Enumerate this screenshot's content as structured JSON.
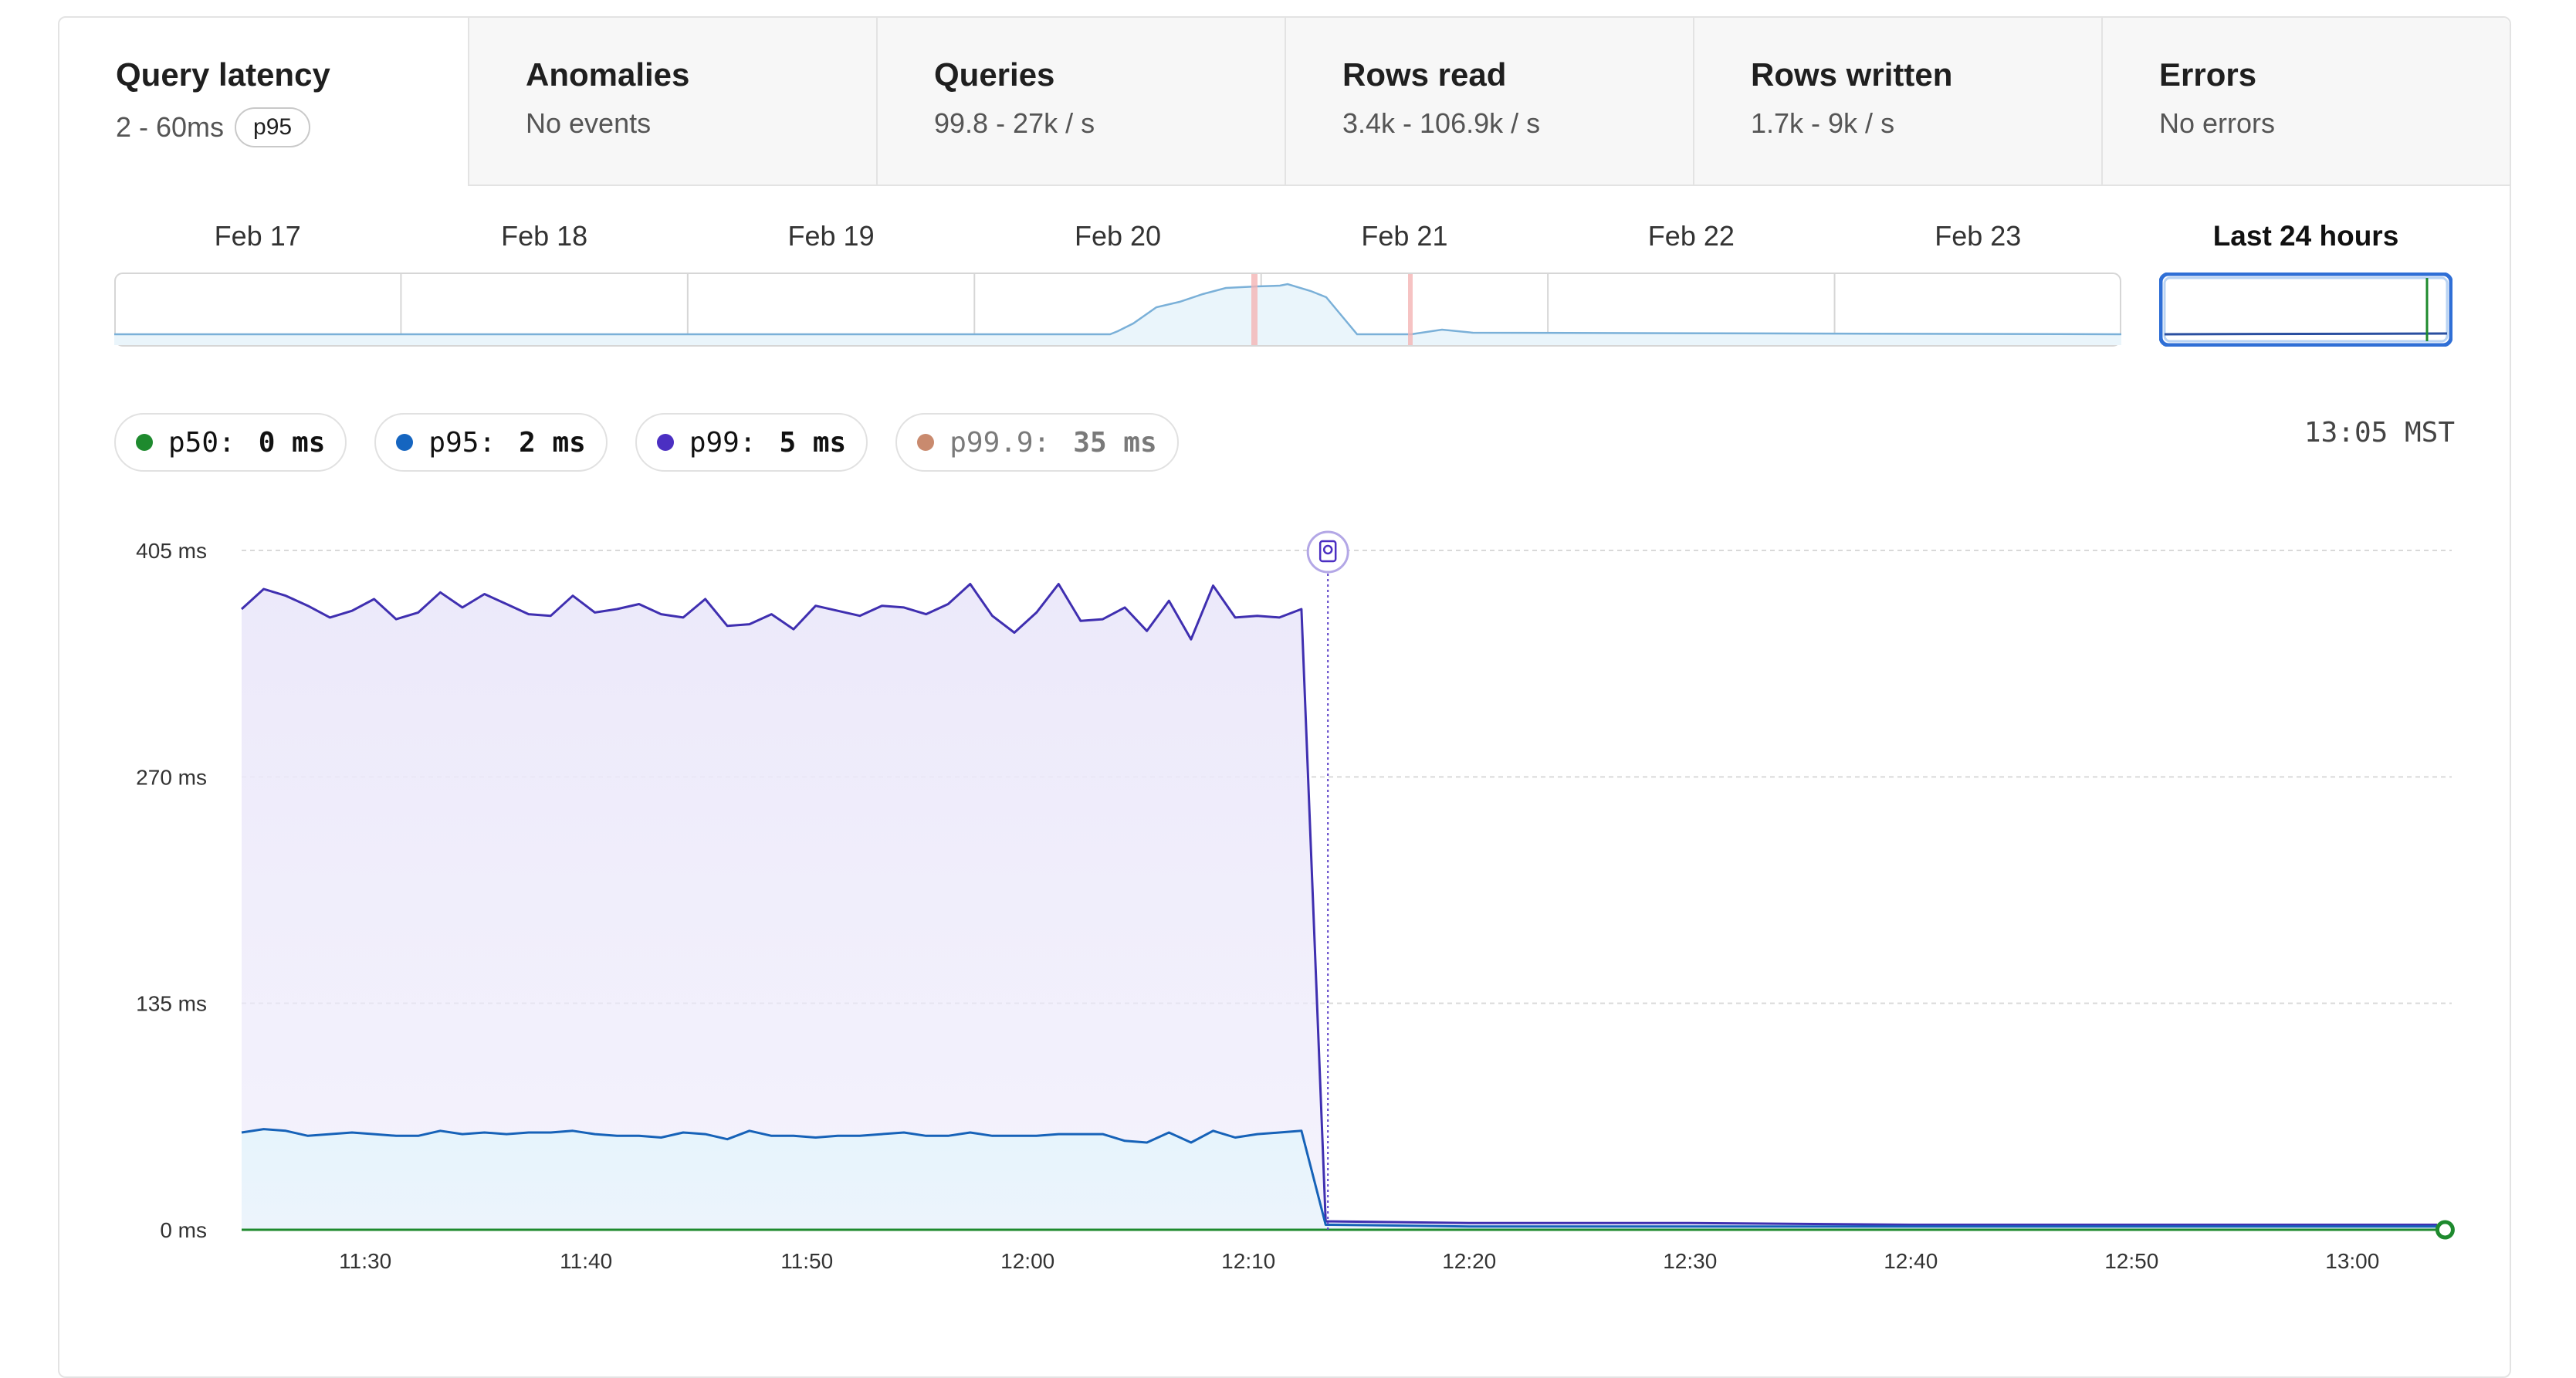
{
  "tabs": [
    {
      "title": "Query latency",
      "sub": "2 - 60ms",
      "badge": "p95",
      "active": true
    },
    {
      "title": "Anomalies",
      "sub": "No events",
      "active": false
    },
    {
      "title": "Queries",
      "sub": "99.8 - 27k / s",
      "active": false
    },
    {
      "title": "Rows read",
      "sub": "3.4k - 106.9k / s",
      "active": false
    },
    {
      "title": "Rows written",
      "sub": "1.7k - 9k / s",
      "active": false
    },
    {
      "title": "Errors",
      "sub": "No errors",
      "active": false
    }
  ],
  "overview": {
    "dates": [
      "Feb 17",
      "Feb 18",
      "Feb 19",
      "Feb 20",
      "Feb 21",
      "Feb 22",
      "Feb 23"
    ],
    "last24_label": "Last 24 hours",
    "accent": "#2f6fd6"
  },
  "legend": [
    {
      "name": "p50:",
      "value": "0 ms",
      "color": "#1e8a2e",
      "dim": false
    },
    {
      "name": "p95:",
      "value": "2 ms",
      "color": "#1565c0",
      "dim": false
    },
    {
      "name": "p99:",
      "value": "5 ms",
      "color": "#4b2fc2",
      "dim": false
    },
    {
      "name": "p99.9:",
      "value": "35 ms",
      "color": "#c98a6e",
      "dim": true
    }
  ],
  "clock": "13:05 MST",
  "chart_data": {
    "type": "area",
    "ylim": [
      0,
      405
    ],
    "y_ticks": [
      "405 ms",
      "270 ms",
      "135 ms",
      "0 ms"
    ],
    "y_tick_values": [
      405,
      270,
      135,
      0
    ],
    "x_ticks": [
      "11:30",
      "11:40",
      "11:50",
      "12:00",
      "12:10",
      "12:20",
      "12:30",
      "12:40",
      "12:50",
      "13:00"
    ],
    "x_tick_minutes": [
      690,
      700,
      710,
      720,
      730,
      740,
      750,
      760,
      770,
      780
    ],
    "x_range_minutes": [
      684.4,
      784.5
    ],
    "deploy_marker_minute": 733.6,
    "grid": true,
    "series": [
      {
        "name": "p99",
        "color": "#3f2fb0",
        "fill": "#ece9fa",
        "x": [
          684.4,
          685.4,
          686.4,
          687.4,
          688.4,
          689.4,
          690.4,
          691.4,
          692.4,
          693.4,
          694.4,
          695.4,
          696.4,
          697.4,
          698.4,
          699.4,
          700.4,
          701.4,
          702.4,
          703.4,
          704.4,
          705.4,
          706.4,
          707.4,
          708.4,
          709.4,
          710.4,
          711.4,
          712.4,
          713.4,
          714.4,
          715.4,
          716.4,
          717.4,
          718.4,
          719.4,
          720.4,
          721.4,
          722.4,
          723.4,
          724.4,
          725.4,
          726.4,
          727.4,
          728.4,
          729.4,
          730.4,
          731.4,
          732.4,
          733.5,
          733.8,
          740,
          750,
          760,
          770,
          780,
          784.2
        ],
        "values": [
          370,
          382,
          378,
          372,
          365,
          369,
          376,
          364,
          368,
          380,
          371,
          379,
          373,
          367,
          366,
          378,
          368,
          370,
          373,
          367,
          365,
          376,
          360,
          361,
          367,
          358,
          372,
          369,
          366,
          372,
          371,
          367,
          373,
          385,
          366,
          356,
          368,
          385,
          363,
          364,
          371,
          357,
          375,
          352,
          384,
          365,
          366,
          365,
          370,
          5,
          5,
          4,
          4,
          3,
          3,
          3,
          3
        ]
      },
      {
        "name": "p95",
        "color": "#1662b8",
        "fill": "#e6f4fc",
        "x": [
          684.4,
          685.4,
          686.4,
          687.4,
          688.4,
          689.4,
          690.4,
          691.4,
          692.4,
          693.4,
          694.4,
          695.4,
          696.4,
          697.4,
          698.4,
          699.4,
          700.4,
          701.4,
          702.4,
          703.4,
          704.4,
          705.4,
          706.4,
          707.4,
          708.4,
          709.4,
          710.4,
          711.4,
          712.4,
          713.4,
          714.4,
          715.4,
          716.4,
          717.4,
          718.4,
          719.4,
          720.4,
          721.4,
          722.4,
          723.4,
          724.4,
          725.4,
          726.4,
          727.4,
          728.4,
          729.4,
          730.4,
          731.4,
          732.4,
          733.5,
          733.8,
          740,
          750,
          760,
          770,
          780,
          784.2
        ],
        "values": [
          58,
          60,
          59,
          56,
          57,
          58,
          57,
          56,
          56,
          59,
          57,
          58,
          57,
          58,
          58,
          59,
          57,
          56,
          56,
          55,
          58,
          57,
          54,
          59,
          56,
          56,
          55,
          56,
          56,
          57,
          58,
          56,
          56,
          58,
          56,
          56,
          56,
          57,
          57,
          57,
          53,
          52,
          58,
          52,
          59,
          55,
          57,
          58,
          59,
          3,
          3,
          2,
          2,
          2,
          2,
          2,
          2
        ]
      },
      {
        "name": "p50",
        "color": "#1e8a2e",
        "fill": "none",
        "x": [
          684.4,
          784.2
        ],
        "values": [
          0,
          0
        ]
      }
    ]
  }
}
